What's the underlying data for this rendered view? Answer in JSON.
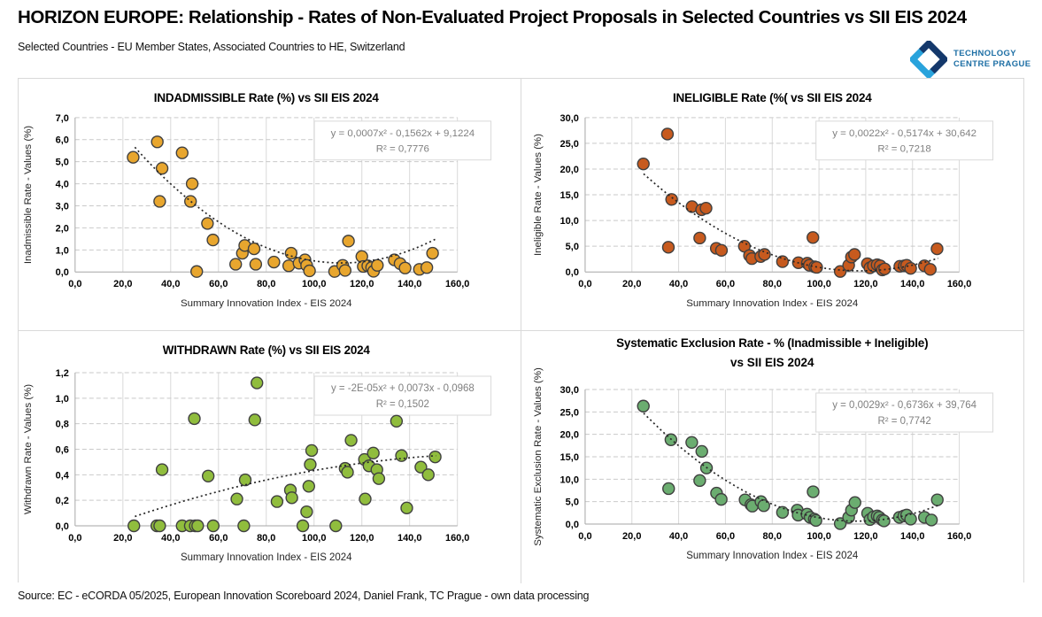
{
  "page": {
    "title": "HORIZON EUROPE: Relationship - Rates of Non-Evaluated Project Proposals in Selected Countries vs SII EIS 2024",
    "subtitle": "Selected Countries - EU Member States, Associated Countries to HE, Switzerland",
    "source": "Source: EC - eCORDA 05/2025, European Innovation Scoreboard 2024, Daniel Frank, TC Prague - own data processing",
    "logo": {
      "line1": "TECHNOLOGY",
      "line2": "CENTRE PRAGUE",
      "icon_dark_color": "#14386B",
      "icon_light_color": "#29A3DC",
      "text_color": "#1C6EA4"
    }
  },
  "chart_data": [
    {
      "type": "scatter",
      "title": "INDADMISSIBLE Rate (%) vs SII EIS 2024",
      "xlabel": "Summary Innovation Index - EIS 2024",
      "ylabel": "Inadmissible Rate - Values (%)",
      "xlim": [
        0,
        160
      ],
      "xstep": 20,
      "ylim": [
        0,
        7
      ],
      "ystep": 1,
      "grid": true,
      "legend": "none",
      "equation": "y = 0,0007x² - 0,1562x + 9,1224",
      "r2": "R² = 0,7776",
      "trend": {
        "a": 0.0007,
        "b": -0.1562,
        "c": 9.1224,
        "x_start": 25,
        "x_end": 151
      },
      "marker_color": "#E8A62E",
      "marker_stroke": "#404040",
      "points": [
        [
          24.3,
          5.2
        ],
        [
          34.4,
          5.9
        ],
        [
          35.4,
          3.2
        ],
        [
          36.4,
          4.7
        ],
        [
          44.8,
          5.4
        ],
        [
          48.3,
          3.2
        ],
        [
          49.0,
          4.0
        ],
        [
          50.9,
          0.02
        ],
        [
          55.4,
          2.2
        ],
        [
          57.7,
          1.45
        ],
        [
          67.2,
          0.35
        ],
        [
          70.0,
          0.85
        ],
        [
          71.0,
          1.2
        ],
        [
          74.9,
          1.05
        ],
        [
          75.6,
          0.35
        ],
        [
          83.2,
          0.45
        ],
        [
          89.4,
          0.28
        ],
        [
          90.4,
          0.85
        ],
        [
          93.7,
          0.4
        ],
        [
          96.2,
          0.55
        ],
        [
          96.9,
          0.3
        ],
        [
          98.1,
          0.05
        ],
        [
          108.6,
          0.02
        ],
        [
          112.0,
          0.3
        ],
        [
          113.0,
          0.07
        ],
        [
          114.4,
          1.4
        ],
        [
          120.0,
          0.7
        ],
        [
          120.6,
          0.25
        ],
        [
          122.5,
          0.28
        ],
        [
          124.1,
          0.2
        ],
        [
          124.9,
          0.03
        ],
        [
          126.5,
          0.3
        ],
        [
          133.6,
          0.55
        ],
        [
          136.0,
          0.38
        ],
        [
          138.1,
          0.18
        ],
        [
          144.1,
          0.12
        ],
        [
          147.2,
          0.2
        ],
        [
          149.6,
          0.85
        ]
      ]
    },
    {
      "type": "scatter",
      "title": "INELIGIBLE Rate (%( vs SII EIS 2024",
      "xlabel": "Summary Innovation Index - EIS 2024",
      "ylabel": "Ineligible Rate - Values (%)",
      "xlim": [
        0,
        160
      ],
      "xstep": 20,
      "ylim": [
        0,
        30
      ],
      "ystep": 5,
      "grid": true,
      "legend": "none",
      "equation": "y = 0,0022x² - 0,5174x + 30,642",
      "r2": "R² = 0,7218",
      "trend": {
        "a": 0.0022,
        "b": -0.5174,
        "c": 30.642,
        "x_start": 25,
        "x_end": 151
      },
      "marker_color": "#C75A1E",
      "marker_stroke": "#404040",
      "points": [
        [
          24.9,
          21.0
        ],
        [
          35.2,
          26.8
        ],
        [
          35.6,
          4.8
        ],
        [
          37.0,
          14.1
        ],
        [
          45.7,
          12.7
        ],
        [
          49.0,
          6.6
        ],
        [
          49.8,
          12.1
        ],
        [
          51.7,
          12.4
        ],
        [
          56.1,
          4.6
        ],
        [
          58.3,
          4.2
        ],
        [
          68.1,
          5.0
        ],
        [
          70.3,
          3.2
        ],
        [
          71.3,
          2.6
        ],
        [
          75.1,
          3.0
        ],
        [
          76.7,
          3.4
        ],
        [
          84.4,
          2.0
        ],
        [
          91.2,
          1.8
        ],
        [
          95.0,
          1.7
        ],
        [
          95.9,
          1.3
        ],
        [
          97.4,
          6.7
        ],
        [
          98.2,
          1.0
        ],
        [
          99.0,
          0.9
        ],
        [
          109.1,
          0.1
        ],
        [
          112.7,
          1.3
        ],
        [
          113.9,
          2.9
        ],
        [
          115.2,
          3.4
        ],
        [
          120.7,
          1.6
        ],
        [
          121.8,
          0.8
        ],
        [
          123.3,
          1.2
        ],
        [
          124.9,
          1.4
        ],
        [
          126.2,
          1.2
        ],
        [
          127.1,
          0.4
        ],
        [
          128.1,
          0.6
        ],
        [
          134.6,
          1.1
        ],
        [
          136.5,
          1.2
        ],
        [
          137.5,
          1.3
        ],
        [
          139.2,
          0.7
        ],
        [
          145.1,
          1.2
        ],
        [
          147.6,
          0.5
        ],
        [
          150.5,
          4.5
        ]
      ]
    },
    {
      "type": "scatter",
      "title": "WITHDRAWN Rate (%) vs SII EIS 2024",
      "xlabel": "Summary Innovation Index - EIS 2024",
      "ylabel": "Withdrawn Rate - Values (%)",
      "xlim": [
        0,
        160
      ],
      "xstep": 20,
      "ylim": [
        0,
        1.2
      ],
      "ystep": 0.2,
      "grid": true,
      "legend": "none",
      "equation": "y = -2E-05x² + 0,0073x - 0,0968",
      "r2": "R² = 0,1502",
      "trend": {
        "a": -2e-05,
        "b": 0.0073,
        "c": -0.0968,
        "x_start": 25,
        "x_end": 151
      },
      "marker_color": "#90BD3D",
      "marker_stroke": "#404040",
      "points": [
        [
          24.6,
          0
        ],
        [
          34.2,
          0
        ],
        [
          35.4,
          0
        ],
        [
          36.4,
          0.44
        ],
        [
          44.8,
          0
        ],
        [
          48.2,
          0
        ],
        [
          49.9,
          0.84
        ],
        [
          50.3,
          0
        ],
        [
          51.3,
          0
        ],
        [
          55.7,
          0.39
        ],
        [
          57.8,
          0
        ],
        [
          67.7,
          0.21
        ],
        [
          70.6,
          0
        ],
        [
          71.2,
          0.36
        ],
        [
          75.2,
          0.83
        ],
        [
          76.1,
          1.12
        ],
        [
          84.5,
          0.19
        ],
        [
          90.1,
          0.28
        ],
        [
          90.7,
          0.22
        ],
        [
          95.3,
          0
        ],
        [
          96.9,
          0.11
        ],
        [
          97.8,
          0.31
        ],
        [
          98.4,
          0.48
        ],
        [
          99.0,
          0.59
        ],
        [
          109.1,
          0
        ],
        [
          113.0,
          0.45
        ],
        [
          114.0,
          0.42
        ],
        [
          115.5,
          0.67
        ],
        [
          121.1,
          0.52
        ],
        [
          121.4,
          0.21
        ],
        [
          123.0,
          0.47
        ],
        [
          124.8,
          0.57
        ],
        [
          126.3,
          0.44
        ],
        [
          127.1,
          0.37
        ],
        [
          134.5,
          0.82
        ],
        [
          136.6,
          0.55
        ],
        [
          138.8,
          0.14
        ],
        [
          144.7,
          0.46
        ],
        [
          147.8,
          0.4
        ],
        [
          150.7,
          0.54
        ]
      ]
    },
    {
      "type": "scatter",
      "title": "Systematic Exclusion Rate - % (Inadmissible  + Ineligible)",
      "title2": "vs SII EIS 2024",
      "xlabel": "Summary Innovation Index - EIS 2024",
      "ylabel": "Systematic Exclusion Rate - Values (%)",
      "xlim": [
        0,
        160
      ],
      "xstep": 20,
      "ylim": [
        0,
        30
      ],
      "ystep": 5,
      "grid": true,
      "legend": "none",
      "equation": "y = 0,0029x² - 0,6736x + 39,764",
      "r2": "R² = 0,7742",
      "trend": {
        "a": 0.0029,
        "b": -0.6736,
        "c": 39.764,
        "x_start": 25,
        "x_end": 151
      },
      "marker_color": "#6BAD70",
      "marker_stroke": "#404040",
      "points": [
        [
          24.9,
          26.3
        ],
        [
          35.7,
          7.9
        ],
        [
          36.7,
          18.8
        ],
        [
          45.6,
          18.2
        ],
        [
          49.0,
          9.7
        ],
        [
          49.9,
          16.2
        ],
        [
          51.9,
          12.5
        ],
        [
          56.2,
          6.9
        ],
        [
          58.2,
          5.5
        ],
        [
          68.4,
          5.4
        ],
        [
          70.9,
          4.3
        ],
        [
          71.5,
          4.0
        ],
        [
          75.2,
          5.0
        ],
        [
          76.4,
          4.1
        ],
        [
          84.4,
          2.6
        ],
        [
          90.7,
          3.1
        ],
        [
          91.1,
          2.0
        ],
        [
          94.9,
          2.2
        ],
        [
          96.2,
          1.5
        ],
        [
          97.5,
          7.2
        ],
        [
          98.0,
          1.1
        ],
        [
          98.7,
          0.8
        ],
        [
          109.1,
          0.1
        ],
        [
          112.7,
          1.5
        ],
        [
          113.9,
          3.1
        ],
        [
          115.4,
          4.8
        ],
        [
          120.8,
          2.4
        ],
        [
          121.8,
          1.0
        ],
        [
          123.3,
          1.6
        ],
        [
          124.9,
          1.8
        ],
        [
          125.8,
          1.5
        ],
        [
          127.1,
          0.9
        ],
        [
          127.8,
          0.7
        ],
        [
          134.4,
          1.5
        ],
        [
          136.3,
          1.8
        ],
        [
          137.5,
          2.0
        ],
        [
          139.2,
          1.1
        ],
        [
          145.1,
          1.5
        ],
        [
          148.1,
          0.9
        ],
        [
          150.6,
          5.4
        ]
      ]
    }
  ]
}
